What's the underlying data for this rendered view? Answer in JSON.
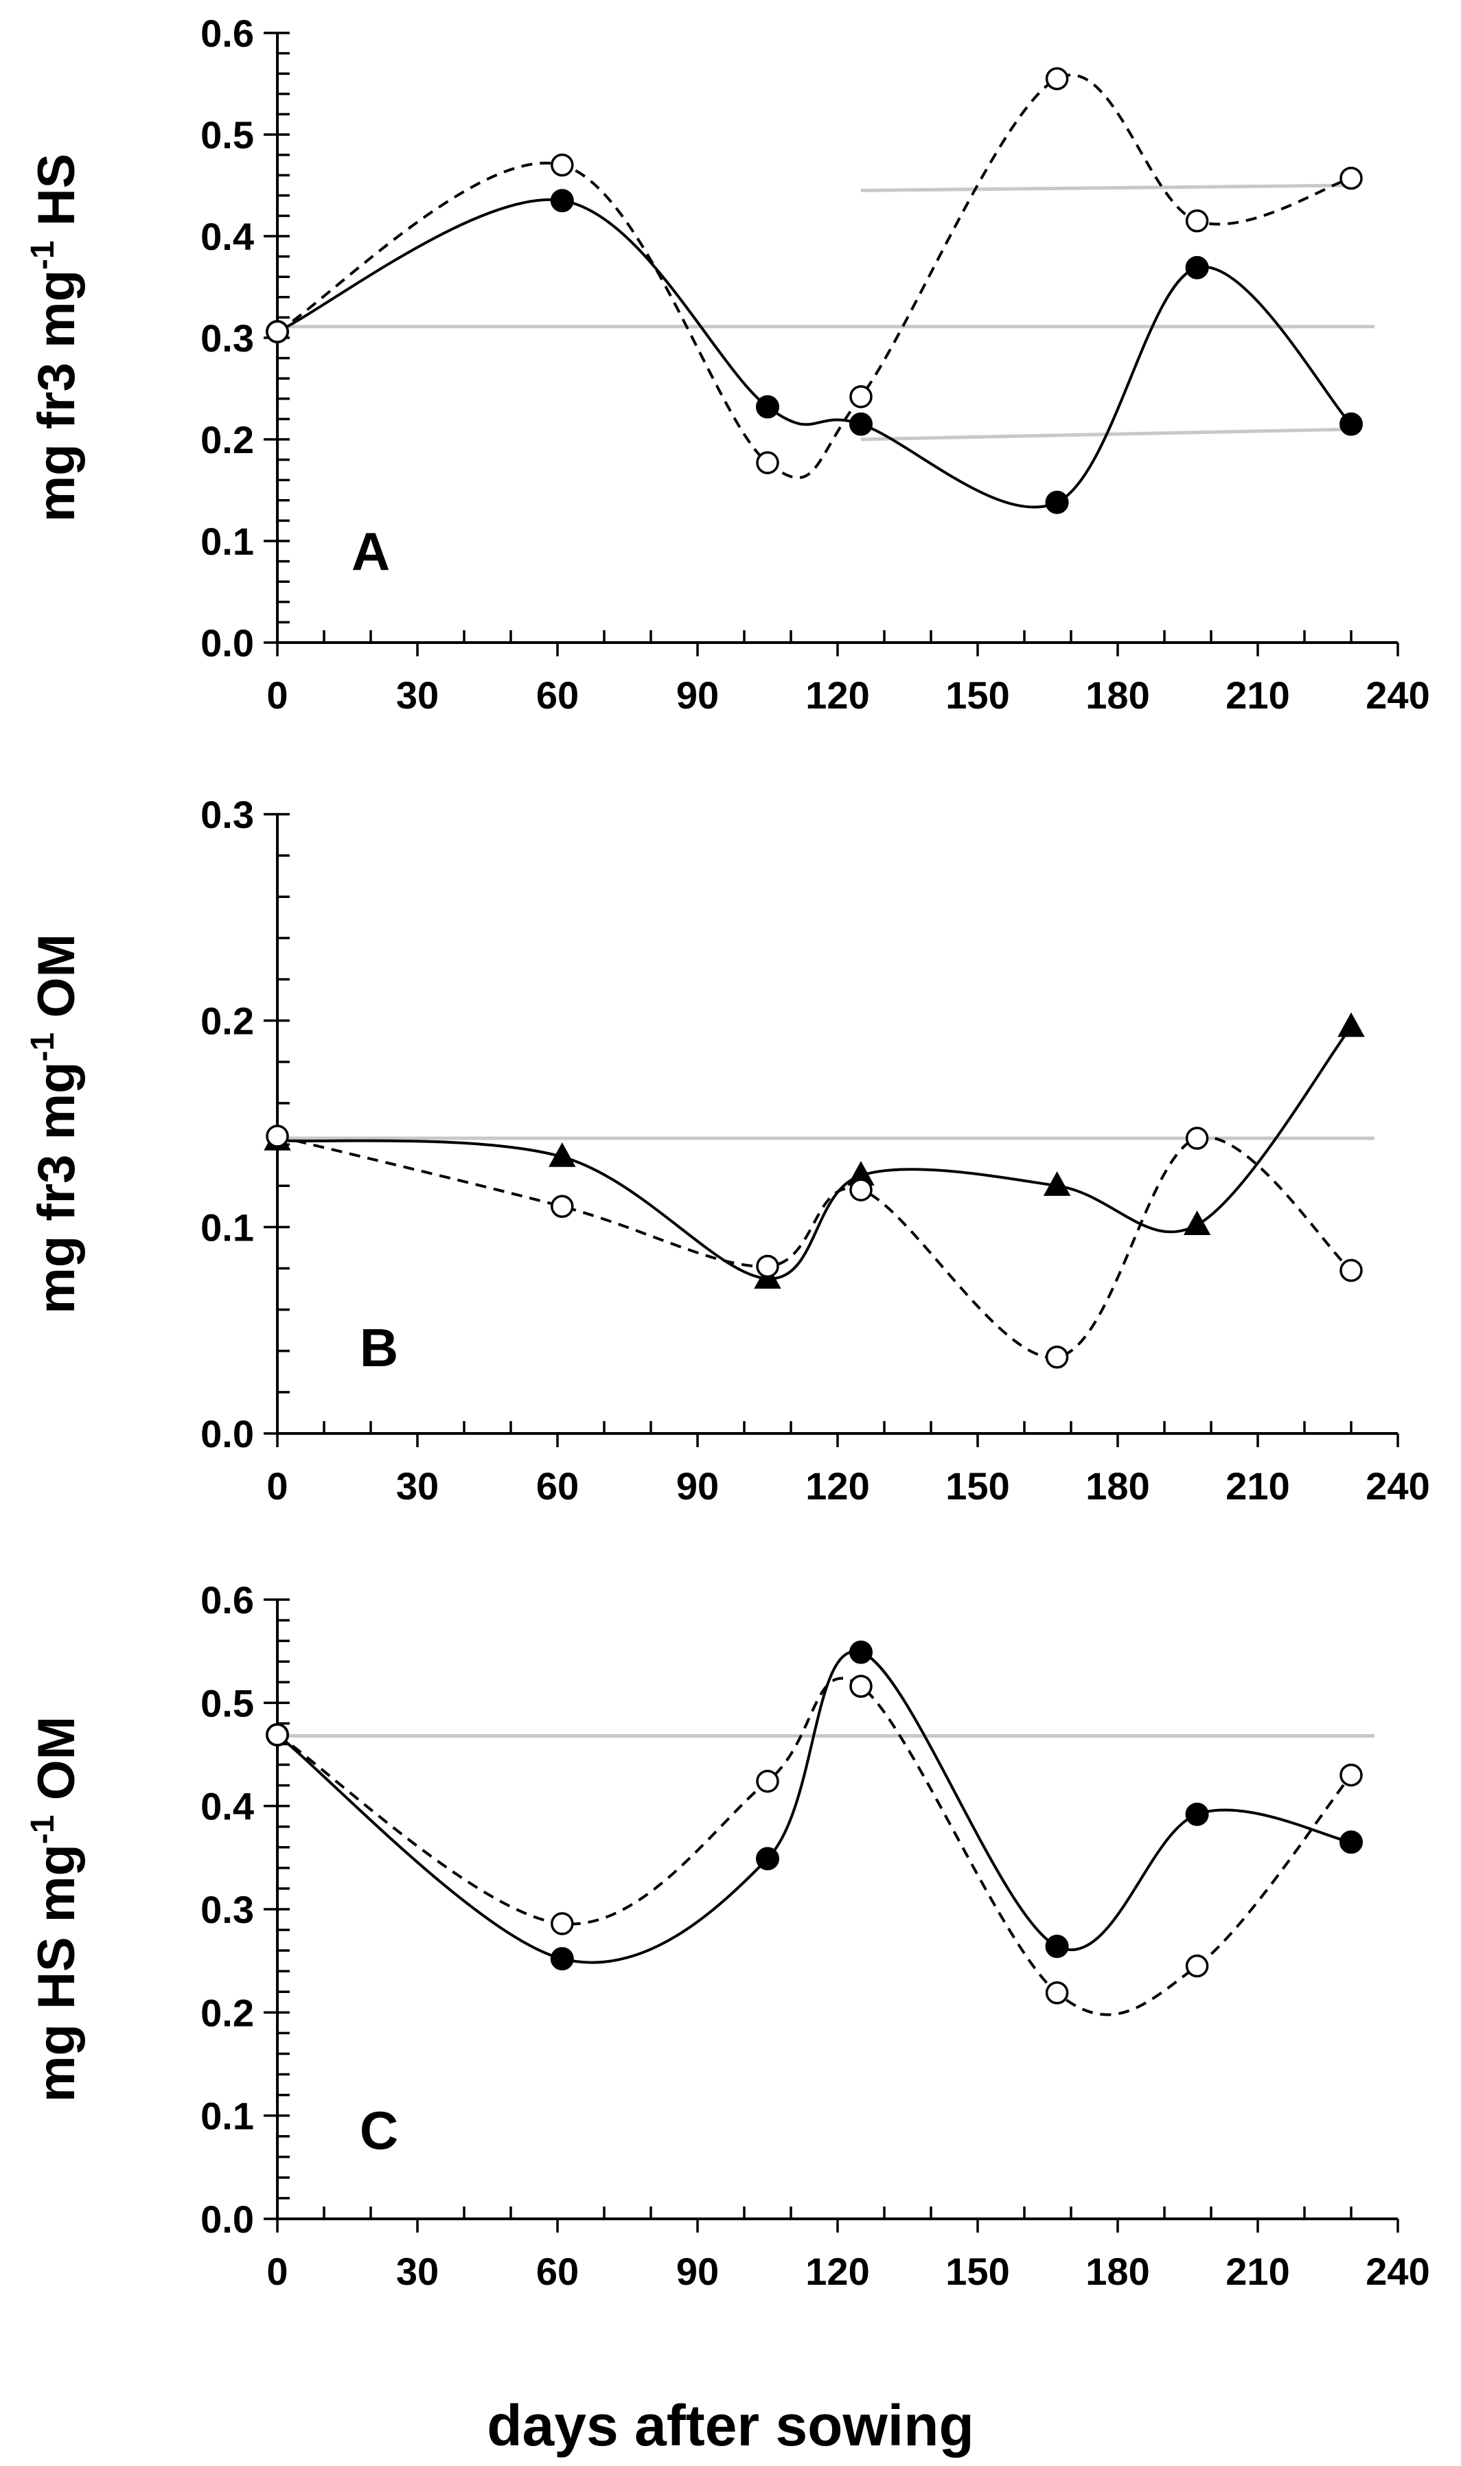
{
  "figure": {
    "xlabel": "days after sowing"
  },
  "chart_data": [
    {
      "type": "line",
      "panel": "A",
      "ylabel": "mg fr3  mg-1 HS",
      "ylabel_parts": {
        "main": "mg fr3  mg",
        "sup": "-1",
        "tail": " HS"
      },
      "xlim": [
        0,
        240
      ],
      "ylim": [
        0,
        0.6
      ],
      "x_ticks": [
        "0",
        "30",
        "60",
        "90",
        "120",
        "150",
        "180",
        "210",
        "240"
      ],
      "y_ticks": [
        "0.0",
        "0.1",
        "0.2",
        "0.3",
        "0.4",
        "0.5",
        "0.6"
      ],
      "y_tick_values": [
        0,
        0.1,
        0.2,
        0.3,
        0.4,
        0.5,
        0.6
      ],
      "y_minor_step": 0.02,
      "series": [
        {
          "name": "filled-circle",
          "marker": "filled-circle",
          "line": "solid",
          "x": [
            0,
            61,
            105,
            125,
            167,
            197,
            230
          ],
          "y": [
            0.306,
            0.435,
            0.232,
            0.215,
            0.138,
            0.369,
            0.215
          ]
        },
        {
          "name": "open-circle",
          "marker": "open-circle",
          "line": "dashed",
          "x": [
            0,
            61,
            105,
            125,
            167,
            197,
            230
          ],
          "y": [
            0.306,
            0.47,
            0.177,
            0.242,
            0.555,
            0.415,
            0.457
          ]
        }
      ],
      "reference_lines": [
        {
          "x": [
            0,
            235
          ],
          "y": [
            0.311,
            0.311
          ]
        },
        {
          "x": [
            125,
            230
          ],
          "y": [
            0.445,
            0.45
          ]
        },
        {
          "x": [
            125,
            230
          ],
          "y": [
            0.2,
            0.21
          ]
        }
      ]
    },
    {
      "type": "line",
      "panel": "B",
      "ylabel": "mg fr3  mg-1 OM",
      "ylabel_parts": {
        "main": "mg fr3  mg",
        "sup": "-1",
        "tail": " OM"
      },
      "xlim": [
        0,
        240
      ],
      "ylim": [
        0,
        0.3
      ],
      "x_ticks": [
        "0",
        "30",
        "60",
        "90",
        "120",
        "150",
        "180",
        "210",
        "240"
      ],
      "y_ticks": [
        "0.0",
        "0.1",
        "0.2",
        "0.3"
      ],
      "y_tick_values": [
        0,
        0.1,
        0.2,
        0.3
      ],
      "y_minor_step": 0.02,
      "series": [
        {
          "name": "filled-triangle",
          "marker": "filled-triangle",
          "line": "solid",
          "x": [
            0,
            61,
            105,
            125,
            167,
            197,
            230
          ],
          "y": [
            0.142,
            0.134,
            0.075,
            0.125,
            0.12,
            0.101,
            0.197
          ]
        },
        {
          "name": "open-circle",
          "marker": "open-circle",
          "line": "dashed",
          "x": [
            0,
            61,
            105,
            125,
            167,
            197,
            230
          ],
          "y": [
            0.144,
            0.11,
            0.081,
            0.118,
            0.037,
            0.143,
            0.079
          ]
        }
      ],
      "reference_lines": [
        {
          "x": [
            0,
            235
          ],
          "y": [
            0.143,
            0.143
          ]
        }
      ]
    },
    {
      "type": "line",
      "panel": "C",
      "ylabel": "mg HS  mg-1 OM",
      "ylabel_parts": {
        "main": "mg HS  mg",
        "sup": "-1",
        "tail": " OM"
      },
      "xlim": [
        0,
        240
      ],
      "ylim": [
        0,
        0.6
      ],
      "x_ticks": [
        "0",
        "30",
        "60",
        "90",
        "120",
        "150",
        "180",
        "210",
        "240"
      ],
      "y_ticks": [
        "0.0",
        "0.1",
        "0.2",
        "0.3",
        "0.4",
        "0.5",
        "0.6"
      ],
      "y_tick_values": [
        0,
        0.1,
        0.2,
        0.3,
        0.4,
        0.5,
        0.6
      ],
      "y_minor_step": 0.02,
      "series": [
        {
          "name": "filled-circle",
          "marker": "filled-circle",
          "line": "solid",
          "x": [
            0,
            61,
            105,
            125,
            167,
            197,
            230
          ],
          "y": [
            0.469,
            0.252,
            0.349,
            0.549,
            0.264,
            0.392,
            0.365
          ]
        },
        {
          "name": "open-circle",
          "marker": "open-circle",
          "line": "dashed",
          "x": [
            0,
            61,
            105,
            125,
            167,
            197,
            230
          ],
          "y": [
            0.469,
            0.286,
            0.424,
            0.516,
            0.219,
            0.245,
            0.43
          ]
        }
      ],
      "reference_lines": [
        {
          "x": [
            0,
            235
          ],
          "y": [
            0.468,
            0.468
          ]
        }
      ]
    }
  ]
}
